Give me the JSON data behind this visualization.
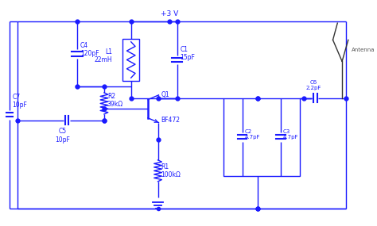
{
  "bg_color": "#ffffff",
  "circuit_color": "#1a1aff",
  "wire_color": "#1a1aff",
  "antenna_color": "#333333",
  "text_color": "#1a1aff",
  "lw": 1.0,
  "title": "+3 V",
  "components": {
    "C1_label": "C1\n15pF",
    "C2_label": "C2\n4.7pF",
    "C3_label": "C3\n4.7pF",
    "C4_label": "C4\n120pF",
    "C5_label": "C5\n10pF",
    "C6_label": "C6\n2.2pF",
    "C7_label": "C7\n10pF",
    "L1_label": "L1\n22mH",
    "R1_label": "R1\n100kΩ",
    "R2_label": "R2\n39kΩ",
    "Q1_label": "Q1",
    "Q1_type": "BF472",
    "antenna_label": "Antenna"
  }
}
